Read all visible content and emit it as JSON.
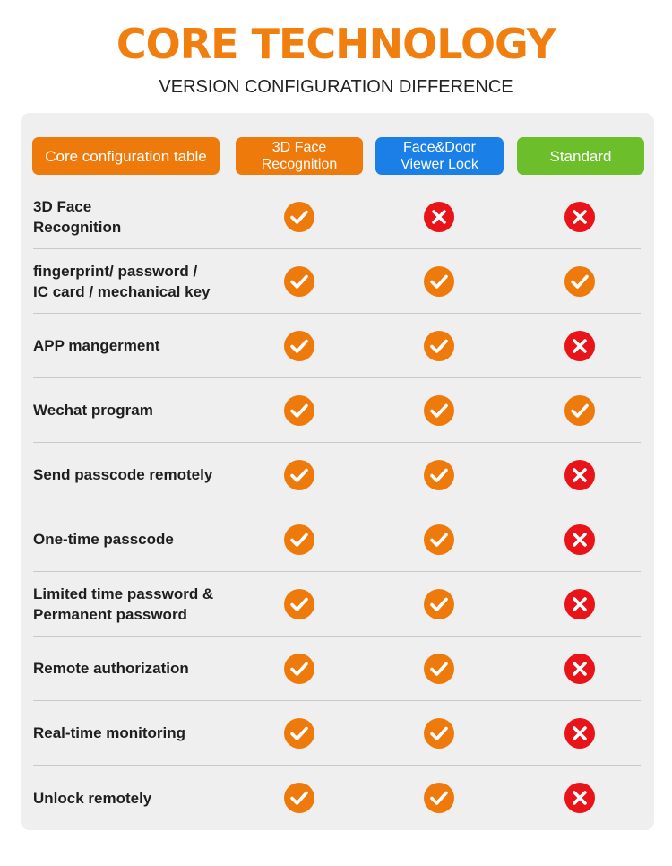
{
  "title": "CORE TECHNOLOGY",
  "subtitle": "VERSION CONFIGURATION DIFFERENCE",
  "table": {
    "header_label": "Core configuration table",
    "columns": [
      "3D Face\nRecognition",
      "Face&Door\nViewer Lock",
      "Standard"
    ],
    "column_colors": [
      "#ef7a0c",
      "#1a80e8",
      "#6cbf2a"
    ],
    "icons": {
      "yes": "check-icon",
      "no": "cross-icon",
      "yes_color": "#ef7a0c",
      "no_color": "#e8141a"
    },
    "rows": [
      {
        "label": "3D Face\nRecognition",
        "values": [
          true,
          false,
          false
        ]
      },
      {
        "label": "fingerprint/ password /\nIC card / mechanical key",
        "values": [
          true,
          true,
          true
        ]
      },
      {
        "label": "APP mangerment",
        "values": [
          true,
          true,
          false
        ]
      },
      {
        "label": "Wechat program",
        "values": [
          true,
          true,
          true
        ]
      },
      {
        "label": "Send passcode remotely",
        "values": [
          true,
          true,
          false
        ]
      },
      {
        "label": "One-time passcode",
        "values": [
          true,
          true,
          false
        ]
      },
      {
        "label": "Limited time password &\nPermanent password",
        "values": [
          true,
          true,
          false
        ]
      },
      {
        "label": "Remote authorization",
        "values": [
          true,
          true,
          false
        ]
      },
      {
        "label": "Real-time monitoring",
        "values": [
          true,
          true,
          false
        ]
      },
      {
        "label": "Unlock remotely",
        "values": [
          true,
          true,
          false
        ]
      }
    ]
  }
}
